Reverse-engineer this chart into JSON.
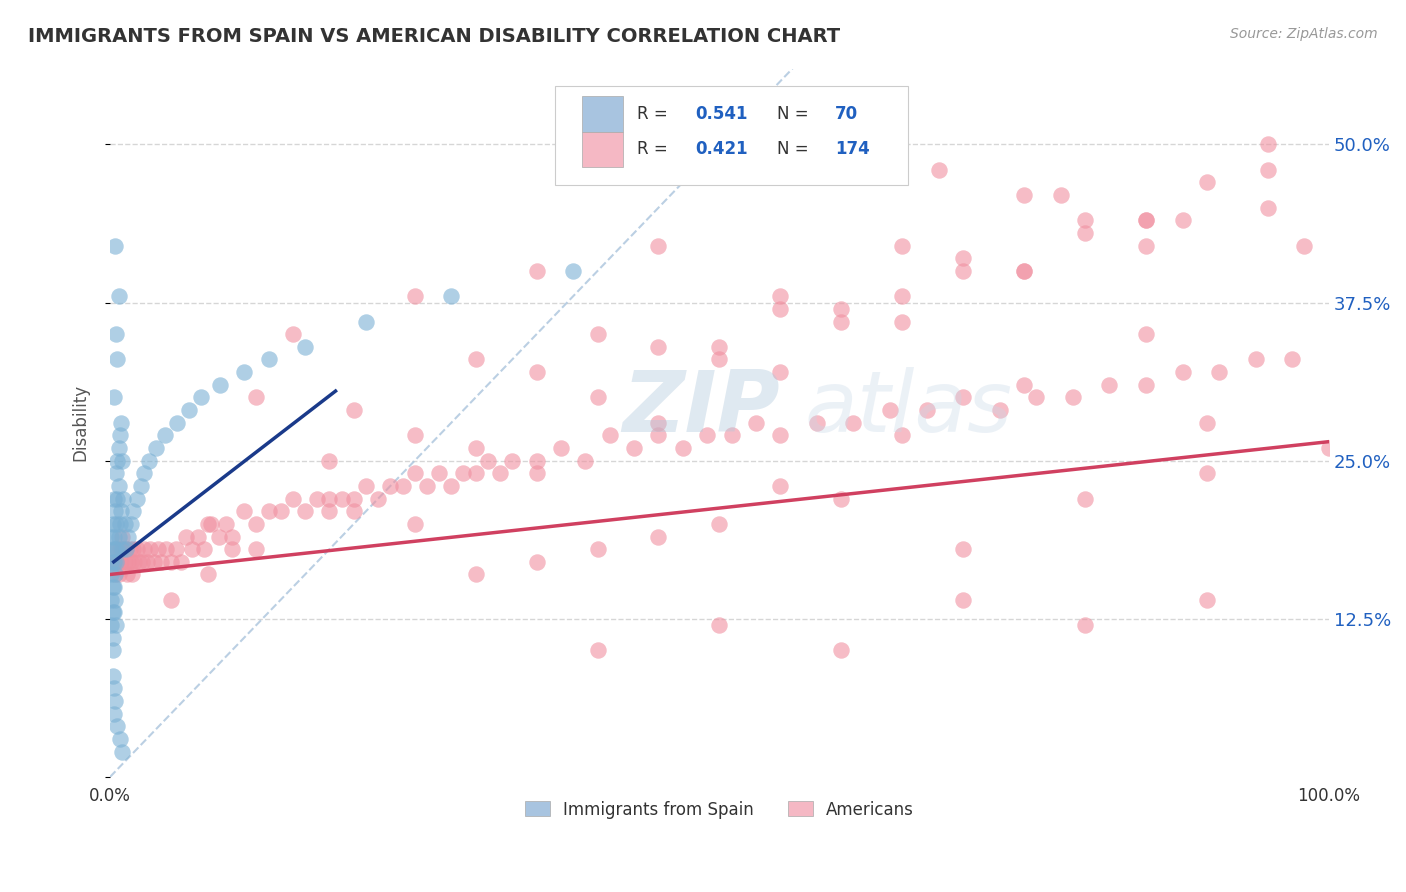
{
  "title": "IMMIGRANTS FROM SPAIN VS AMERICAN DISABILITY CORRELATION CHART",
  "source_text": "Source: ZipAtlas.com",
  "ylabel": "Disability",
  "xlim": [
    0,
    1.0
  ],
  "ylim": [
    0.0,
    0.56
  ],
  "yticks": [
    0.0,
    0.125,
    0.25,
    0.375,
    0.5
  ],
  "ytick_labels": [
    "",
    "12.5%",
    "25.0%",
    "37.5%",
    "50.0%"
  ],
  "blue_scatter_x": [
    0.001,
    0.001,
    0.001,
    0.001,
    0.001,
    0.002,
    0.002,
    0.002,
    0.002,
    0.002,
    0.002,
    0.002,
    0.003,
    0.003,
    0.003,
    0.003,
    0.003,
    0.003,
    0.004,
    0.004,
    0.004,
    0.004,
    0.005,
    0.005,
    0.005,
    0.005,
    0.006,
    0.006,
    0.006,
    0.007,
    0.007,
    0.007,
    0.008,
    0.008,
    0.009,
    0.009,
    0.01,
    0.01,
    0.011,
    0.012,
    0.013,
    0.015,
    0.017,
    0.019,
    0.022,
    0.025,
    0.028,
    0.032,
    0.038,
    0.045,
    0.055,
    0.065,
    0.075,
    0.09,
    0.11,
    0.13,
    0.16,
    0.21,
    0.28,
    0.38,
    0.004,
    0.003,
    0.005,
    0.006,
    0.007,
    0.003,
    0.004,
    0.006,
    0.008,
    0.01
  ],
  "blue_scatter_y": [
    0.17,
    0.19,
    0.16,
    0.14,
    0.12,
    0.18,
    0.2,
    0.15,
    0.13,
    0.11,
    0.1,
    0.08,
    0.22,
    0.19,
    0.17,
    0.15,
    0.13,
    0.07,
    0.21,
    0.18,
    0.16,
    0.14,
    0.24,
    0.2,
    0.17,
    0.12,
    0.25,
    0.22,
    0.18,
    0.26,
    0.23,
    0.19,
    0.27,
    0.2,
    0.28,
    0.21,
    0.25,
    0.18,
    0.22,
    0.2,
    0.18,
    0.19,
    0.2,
    0.21,
    0.22,
    0.23,
    0.24,
    0.25,
    0.26,
    0.27,
    0.28,
    0.29,
    0.3,
    0.31,
    0.32,
    0.33,
    0.34,
    0.36,
    0.38,
    0.4,
    0.42,
    0.3,
    0.35,
    0.33,
    0.38,
    0.05,
    0.06,
    0.04,
    0.03,
    0.02
  ],
  "pink_scatter_x": [
    0.003,
    0.004,
    0.005,
    0.006,
    0.007,
    0.008,
    0.009,
    0.01,
    0.011,
    0.012,
    0.013,
    0.014,
    0.015,
    0.016,
    0.017,
    0.018,
    0.019,
    0.02,
    0.022,
    0.024,
    0.026,
    0.028,
    0.03,
    0.033,
    0.036,
    0.039,
    0.042,
    0.046,
    0.05,
    0.054,
    0.058,
    0.062,
    0.067,
    0.072,
    0.077,
    0.083,
    0.089,
    0.095,
    0.1,
    0.11,
    0.12,
    0.13,
    0.14,
    0.15,
    0.16,
    0.17,
    0.18,
    0.19,
    0.2,
    0.21,
    0.22,
    0.23,
    0.24,
    0.25,
    0.26,
    0.27,
    0.28,
    0.29,
    0.3,
    0.31,
    0.32,
    0.33,
    0.35,
    0.37,
    0.39,
    0.41,
    0.43,
    0.45,
    0.47,
    0.49,
    0.51,
    0.53,
    0.55,
    0.58,
    0.61,
    0.64,
    0.67,
    0.7,
    0.73,
    0.76,
    0.79,
    0.82,
    0.85,
    0.88,
    0.91,
    0.94,
    0.97,
    1.0,
    0.08,
    0.12,
    0.18,
    0.25,
    0.35,
    0.45,
    0.55,
    0.65,
    0.75,
    0.85,
    0.95,
    0.1,
    0.2,
    0.3,
    0.4,
    0.5,
    0.6,
    0.7,
    0.8,
    0.9,
    0.15,
    0.25,
    0.35,
    0.45,
    0.55,
    0.65,
    0.75,
    0.85,
    0.95,
    0.05,
    0.08,
    0.12,
    0.18,
    0.25,
    0.35,
    0.45,
    0.55,
    0.65,
    0.75,
    0.85,
    0.95,
    0.3,
    0.4,
    0.5,
    0.6,
    0.7,
    0.8,
    0.9,
    0.2,
    0.3,
    0.4,
    0.5,
    0.6,
    0.7,
    0.8,
    0.9,
    0.35,
    0.45,
    0.55,
    0.65,
    0.75,
    0.85,
    0.4,
    0.5,
    0.6,
    0.7,
    0.8,
    0.9,
    0.48,
    0.58,
    0.68,
    0.78,
    0.88,
    0.98
  ],
  "pink_scatter_y": [
    0.17,
    0.16,
    0.18,
    0.17,
    0.16,
    0.18,
    0.17,
    0.19,
    0.18,
    0.17,
    0.18,
    0.16,
    0.17,
    0.18,
    0.17,
    0.16,
    0.18,
    0.17,
    0.18,
    0.17,
    0.17,
    0.18,
    0.17,
    0.18,
    0.17,
    0.18,
    0.17,
    0.18,
    0.17,
    0.18,
    0.17,
    0.19,
    0.18,
    0.19,
    0.18,
    0.2,
    0.19,
    0.2,
    0.19,
    0.21,
    0.2,
    0.21,
    0.21,
    0.22,
    0.21,
    0.22,
    0.21,
    0.22,
    0.21,
    0.23,
    0.22,
    0.23,
    0.23,
    0.24,
    0.23,
    0.24,
    0.23,
    0.24,
    0.24,
    0.25,
    0.24,
    0.25,
    0.25,
    0.26,
    0.25,
    0.27,
    0.26,
    0.27,
    0.26,
    0.27,
    0.27,
    0.28,
    0.27,
    0.28,
    0.28,
    0.29,
    0.29,
    0.3,
    0.29,
    0.3,
    0.3,
    0.31,
    0.31,
    0.32,
    0.32,
    0.33,
    0.33,
    0.26,
    0.2,
    0.3,
    0.25,
    0.27,
    0.32,
    0.34,
    0.37,
    0.38,
    0.4,
    0.42,
    0.45,
    0.18,
    0.22,
    0.26,
    0.3,
    0.34,
    0.36,
    0.4,
    0.44,
    0.28,
    0.35,
    0.38,
    0.4,
    0.42,
    0.38,
    0.42,
    0.46,
    0.44,
    0.48,
    0.14,
    0.16,
    0.18,
    0.22,
    0.2,
    0.24,
    0.28,
    0.32,
    0.36,
    0.4,
    0.44,
    0.5,
    0.16,
    0.18,
    0.2,
    0.22,
    0.18,
    0.22,
    0.24,
    0.29,
    0.33,
    0.35,
    0.33,
    0.37,
    0.41,
    0.43,
    0.47,
    0.17,
    0.19,
    0.23,
    0.27,
    0.31,
    0.35,
    0.1,
    0.12,
    0.1,
    0.14,
    0.12,
    0.14,
    0.5,
    0.52,
    0.48,
    0.46,
    0.44,
    0.42
  ],
  "blue_line_x": [
    0.003,
    0.185
  ],
  "blue_line_y": [
    0.17,
    0.305
  ],
  "pink_line_x": [
    0.0,
    1.0
  ],
  "pink_line_y": [
    0.16,
    0.265
  ],
  "ref_line_x": [
    0.0,
    0.56
  ],
  "ref_line_y": [
    0.0,
    0.56
  ],
  "watermark_zip": "ZIP",
  "watermark_atlas": "atlas",
  "background_color": "#ffffff",
  "blue_scatter_color": "#7ab0d4",
  "pink_scatter_color": "#f090a0",
  "blue_line_color": "#1a3a8a",
  "pink_line_color": "#d04060",
  "ref_line_color": "#aac4dc",
  "grid_color": "#cccccc",
  "title_color": "#333333",
  "ylabel_color": "#555555",
  "ytick_label_color": "#2060c0",
  "legend_box_color": "#a8c4e0",
  "legend_pink_color": "#f5b8c4",
  "legend_RN_color": "#2060c0",
  "legend_text_color": "#333333"
}
